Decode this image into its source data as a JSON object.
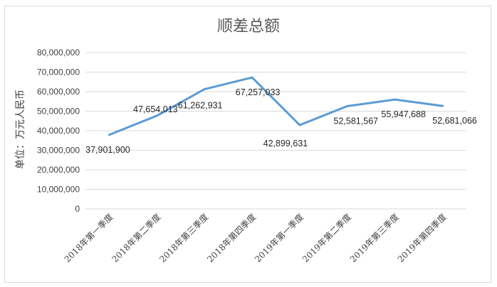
{
  "chart_data": {
    "type": "line",
    "title": "顺差总额",
    "ylabel": "单位：万元人民币",
    "xlabel": "",
    "categories": [
      "2018年第一季度",
      "2018年第二季度",
      "2018年第三季度",
      "2018年第四季度",
      "2019年第一季度",
      "2019年第二季度",
      "2019年第三季度",
      "2019年第四季度"
    ],
    "series": [
      {
        "values": [
          37901900,
          47654013,
          61262931,
          67257033,
          42899631,
          52581567,
          55947688,
          52681066
        ],
        "labels": [
          "37,901,900",
          "47,654,013",
          "61,262,931",
          "67,257,033",
          "42,899,631",
          "52,581,567",
          "55,947,688",
          "52,681,066"
        ],
        "color": "#5b9bd5"
      }
    ],
    "ylim": [
      0,
      80000000
    ],
    "yticks": [
      "0",
      "10,000,000",
      "20,000,000",
      "30,000,000",
      "40,000,000",
      "50,000,000",
      "60,000,000",
      "70,000,000",
      "80,000,000"
    ],
    "grid": true,
    "legend": "none"
  }
}
